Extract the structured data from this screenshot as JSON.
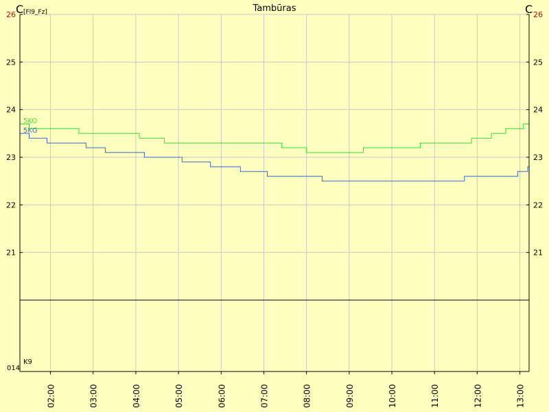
{
  "chart_data": {
    "type": "line",
    "title": "Tambūras",
    "y_unit_left": "C",
    "y_unit_left_sub": "[Fl9_Fz]",
    "y_unit_right": "C",
    "ylim": [
      20,
      26
    ],
    "y_ticks": [
      "26",
      "25",
      "24",
      "23",
      "22",
      "21"
    ],
    "x_ticks": [
      "02:00",
      "03:00",
      "04:00",
      "05:00",
      "06:00",
      "07:00",
      "08:00",
      "09:00",
      "10:00",
      "11:00",
      "12:00",
      "13:00"
    ],
    "xlim": [
      "01:17",
      "13:13"
    ],
    "lower_panel": {
      "label": "K9",
      "bottom_label": "014"
    },
    "grid": true,
    "series": [
      {
        "name": "5KO",
        "color": "#33DD33",
        "points": [
          [
            "01:17",
            23.7
          ],
          [
            "01:30",
            23.6
          ],
          [
            "02:35",
            23.6
          ],
          [
            "02:40",
            23.5
          ],
          [
            "04:02",
            23.5
          ],
          [
            "04:05",
            23.4
          ],
          [
            "04:32",
            23.4
          ],
          [
            "04:40",
            23.3
          ],
          [
            "07:23",
            23.3
          ],
          [
            "07:25",
            23.2
          ],
          [
            "07:55",
            23.2
          ],
          [
            "08:00",
            23.1
          ],
          [
            "09:17",
            23.1
          ],
          [
            "09:20",
            23.2
          ],
          [
            "10:37",
            23.2
          ],
          [
            "10:40",
            23.3
          ],
          [
            "11:47",
            23.3
          ],
          [
            "11:52",
            23.4
          ],
          [
            "12:15",
            23.4
          ],
          [
            "12:20",
            23.5
          ],
          [
            "12:37",
            23.5
          ],
          [
            "12:40",
            23.6
          ],
          [
            "13:00",
            23.6
          ],
          [
            "13:05",
            23.7
          ],
          [
            "13:13",
            23.7
          ]
        ]
      },
      {
        "name": "5KG",
        "color": "#3366CC",
        "points": [
          [
            "01:17",
            23.5
          ],
          [
            "01:30",
            23.4
          ],
          [
            "01:50",
            23.4
          ],
          [
            "01:55",
            23.3
          ],
          [
            "02:45",
            23.3
          ],
          [
            "02:50",
            23.2
          ],
          [
            "03:10",
            23.2
          ],
          [
            "03:17",
            23.1
          ],
          [
            "04:07",
            23.1
          ],
          [
            "04:12",
            23.0
          ],
          [
            "05:00",
            23.0
          ],
          [
            "05:05",
            22.9
          ],
          [
            "05:40",
            22.9
          ],
          [
            "05:45",
            22.8
          ],
          [
            "06:22",
            22.8
          ],
          [
            "06:27",
            22.7
          ],
          [
            "07:00",
            22.7
          ],
          [
            "07:05",
            22.6
          ],
          [
            "08:17",
            22.6
          ],
          [
            "08:22",
            22.5
          ],
          [
            "11:37",
            22.5
          ],
          [
            "11:42",
            22.6
          ],
          [
            "12:52",
            22.6
          ],
          [
            "12:57",
            22.7
          ],
          [
            "13:08",
            22.7
          ],
          [
            "13:11",
            22.8
          ],
          [
            "13:13",
            22.8
          ]
        ]
      }
    ]
  }
}
